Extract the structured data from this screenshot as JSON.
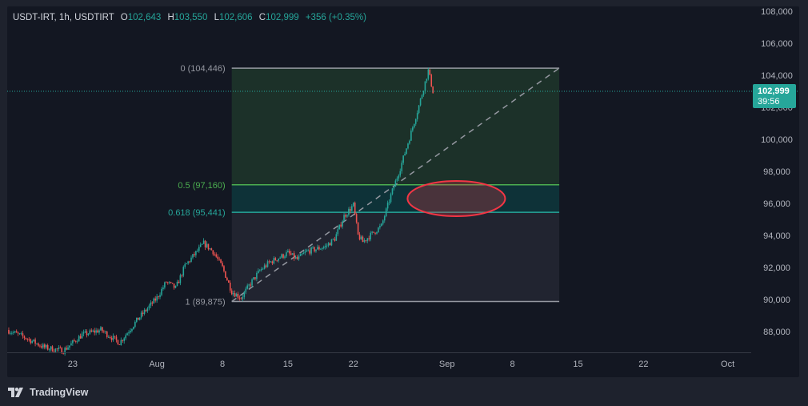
{
  "legend": {
    "symbol": "USDT-IRT, 1h, USDTIRT",
    "open_key": "O",
    "open": "102,643",
    "high_key": "H",
    "high": "103,550",
    "low_key": "L",
    "low": "102,606",
    "close_key": "C",
    "close": "102,999",
    "change": "+356 (+0.35%)"
  },
  "price_badge": {
    "price": "102,999",
    "countdown": "39:56"
  },
  "footer": {
    "brand": "TradingView"
  },
  "colors": {
    "up": "#26a69a",
    "down": "#ef5350",
    "fib_half": "#4caf50",
    "fib_618": "#26a69a",
    "ellipse": "#f23645",
    "badge": "#26a69a"
  },
  "chart_data": {
    "type": "candlestick",
    "title": "USDT-IRT, 1h, USDTIRT",
    "xlabel": "",
    "ylabel": "",
    "y_ticks": [
      88000,
      90000,
      92000,
      94000,
      96000,
      98000,
      100000,
      102000,
      104000,
      106000,
      108000
    ],
    "y_tick_labels": [
      "88,000",
      "90,000",
      "92,000",
      "94,000",
      "96,000",
      "98,000",
      "100,000",
      "102,000",
      "104,000",
      "106,000",
      "108,000"
    ],
    "ylim": [
      86700,
      108300
    ],
    "x_tick_labels": [
      "23",
      "Aug",
      "8",
      "15",
      "22",
      "Sep",
      "8",
      "15",
      "22",
      "Oct"
    ],
    "x_tick_dates": [
      "2024-07-23",
      "2024-08-01",
      "2024-08-08",
      "2024-08-15",
      "2024-08-22",
      "2024-09-01",
      "2024-09-08",
      "2024-09-15",
      "2024-09-22",
      "2024-10-01"
    ],
    "xlim": [
      "2024-07-16",
      "2024-10-03"
    ],
    "price_path": [
      {
        "date": "2024-07-16",
        "price": 88100
      },
      {
        "date": "2024-07-18",
        "price": 87600
      },
      {
        "date": "2024-07-20",
        "price": 87000
      },
      {
        "date": "2024-07-22",
        "price": 86800
      },
      {
        "date": "2024-07-24",
        "price": 87800
      },
      {
        "date": "2024-07-26",
        "price": 88100
      },
      {
        "date": "2024-07-28",
        "price": 87300
      },
      {
        "date": "2024-07-30",
        "price": 88800
      },
      {
        "date": "2024-08-01",
        "price": 90100
      },
      {
        "date": "2024-08-02",
        "price": 91100
      },
      {
        "date": "2024-08-03",
        "price": 90700
      },
      {
        "date": "2024-08-04",
        "price": 92100
      },
      {
        "date": "2024-08-05",
        "price": 92800
      },
      {
        "date": "2024-08-06",
        "price": 93500
      },
      {
        "date": "2024-08-07",
        "price": 93000
      },
      {
        "date": "2024-08-08",
        "price": 92000
      },
      {
        "date": "2024-08-09",
        "price": 90500
      },
      {
        "date": "2024-08-10",
        "price": 90100
      },
      {
        "date": "2024-08-11",
        "price": 91000
      },
      {
        "date": "2024-08-12",
        "price": 91800
      },
      {
        "date": "2024-08-13",
        "price": 92300
      },
      {
        "date": "2024-08-15",
        "price": 92900
      },
      {
        "date": "2024-08-16",
        "price": 92500
      },
      {
        "date": "2024-08-17",
        "price": 93000
      },
      {
        "date": "2024-08-19",
        "price": 93300
      },
      {
        "date": "2024-08-20",
        "price": 93800
      },
      {
        "date": "2024-08-21",
        "price": 95200
      },
      {
        "date": "2024-08-22",
        "price": 95900
      },
      {
        "date": "2024-08-22T12",
        "price": 94000
      },
      {
        "date": "2024-08-23",
        "price": 93600
      },
      {
        "date": "2024-08-24",
        "price": 94100
      },
      {
        "date": "2024-08-25",
        "price": 94600
      },
      {
        "date": "2024-08-26",
        "price": 96500
      },
      {
        "date": "2024-08-27",
        "price": 98200
      },
      {
        "date": "2024-08-28",
        "price": 100100
      },
      {
        "date": "2024-08-29",
        "price": 102100
      },
      {
        "date": "2024-08-30",
        "price": 104300
      },
      {
        "date": "2024-08-30T12",
        "price": 103000
      }
    ],
    "fib_retracement": {
      "levels": [
        {
          "label": "0 (104,446)",
          "ratio": 0,
          "price": 104446
        },
        {
          "label": "0.5 (97,160)",
          "ratio": 0.5,
          "price": 97160
        },
        {
          "label": "0.618 (95,441)",
          "ratio": 0.618,
          "price": 95441
        },
        {
          "label": "1 (89,875)",
          "ratio": 1,
          "price": 89875
        }
      ],
      "start_date": "2024-08-09",
      "end_date": "2024-09-13"
    },
    "trendline": {
      "from": {
        "date": "2024-08-09",
        "price": 89875
      },
      "to": {
        "date": "2024-09-13",
        "price": 104446
      }
    },
    "highlight_ellipse": {
      "center_date": "2024-09-02",
      "center_price": 96300
    },
    "last_price": 102999,
    "grid": false
  }
}
